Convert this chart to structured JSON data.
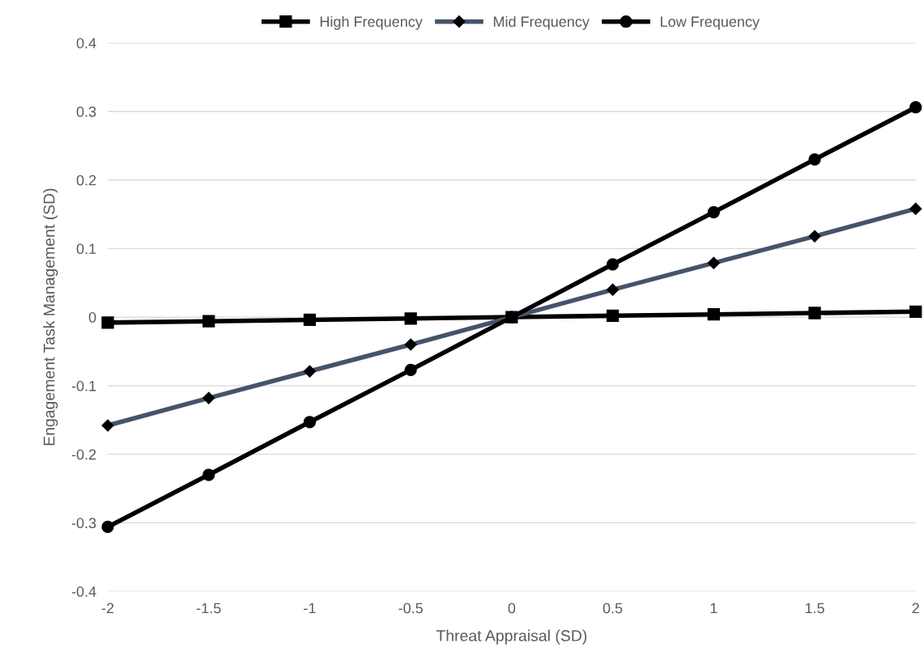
{
  "chart_data": {
    "type": "line",
    "xlabel": "Threat Appraisal (SD)",
    "ylabel": "Engagement Task Management (SD)",
    "x": [
      -2,
      -1.5,
      -1,
      -0.5,
      0,
      0.5,
      1,
      1.5,
      2
    ],
    "series": [
      {
        "name": "High Frequency",
        "color": "#000000",
        "marker": "square",
        "values": [
          -0.008,
          -0.006,
          -0.004,
          -0.002,
          0,
          0.002,
          0.004,
          0.006,
          0.008
        ]
      },
      {
        "name": "Mid Frequency",
        "color": "#44546a",
        "marker": "diamond",
        "values": [
          -0.158,
          -0.118,
          -0.079,
          -0.04,
          0,
          0.04,
          0.079,
          0.118,
          0.158
        ]
      },
      {
        "name": "Low Frequency",
        "color": "#000000",
        "marker": "circle",
        "values": [
          -0.306,
          -0.23,
          -0.153,
          -0.077,
          0,
          0.077,
          0.153,
          0.23,
          0.306
        ]
      }
    ],
    "xlim": [
      -2,
      2
    ],
    "xticks": [
      -2,
      -1.5,
      -1,
      -0.5,
      0,
      0.5,
      1,
      1.5,
      2
    ],
    "ylim": [
      -0.4,
      0.4
    ],
    "yticks": [
      -0.4,
      -0.3,
      -0.2,
      -0.1,
      0,
      0.1,
      0.2,
      0.3,
      0.4
    ],
    "grid": "y",
    "legend": "top",
    "line_style": "solid"
  }
}
